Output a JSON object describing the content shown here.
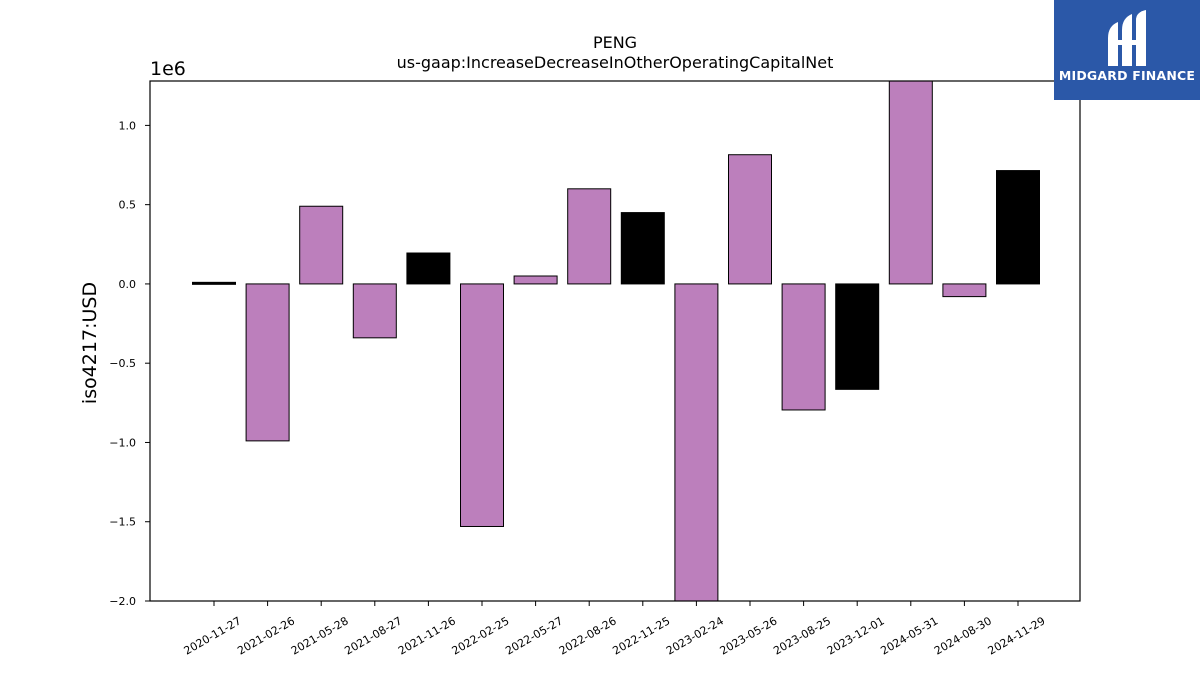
{
  "chart_data": {
    "type": "bar",
    "title": "PENG",
    "subtitle": "us-gaap:IncreaseDecreaseInOtherOperatingCapitalNet",
    "ylabel": "iso4217:USD",
    "xlabel": "",
    "offset_label": "1e6",
    "ylim": [
      -2000000,
      1280000
    ],
    "yticks": [
      -2000000,
      -1500000,
      -1000000,
      -500000,
      0,
      500000,
      1000000
    ],
    "ytick_labels": [
      "−2.0",
      "−1.5",
      "−1.0",
      "−0.5",
      "0.0",
      "0.5",
      "1.0"
    ],
    "categories": [
      "2020-11-27",
      "2021-02-26",
      "2021-05-28",
      "2021-08-27",
      "2021-11-26",
      "2022-02-25",
      "2022-05-27",
      "2022-08-26",
      "2022-11-25",
      "2023-02-24",
      "2023-05-26",
      "2023-08-25",
      "2023-12-01",
      "2024-05-31",
      "2024-08-30",
      "2024-11-29"
    ],
    "values": [
      10000,
      -990000,
      490000,
      -340000,
      195000,
      -1530000,
      50000,
      600000,
      450000,
      -2000000,
      815000,
      -795000,
      -665000,
      1280000,
      -80000,
      715000
    ],
    "bar_colors": [
      "#000000",
      "#bc7fbc",
      "#bc7fbc",
      "#bc7fbc",
      "#000000",
      "#bc7fbc",
      "#bc7fbc",
      "#bc7fbc",
      "#000000",
      "#bc7fbc",
      "#bc7fbc",
      "#bc7fbc",
      "#000000",
      "#bc7fbc",
      "#bc7fbc",
      "#000000"
    ],
    "grid": false
  },
  "logo": {
    "text": "MIDGARD FINANCE",
    "background": "#2b58a8"
  }
}
